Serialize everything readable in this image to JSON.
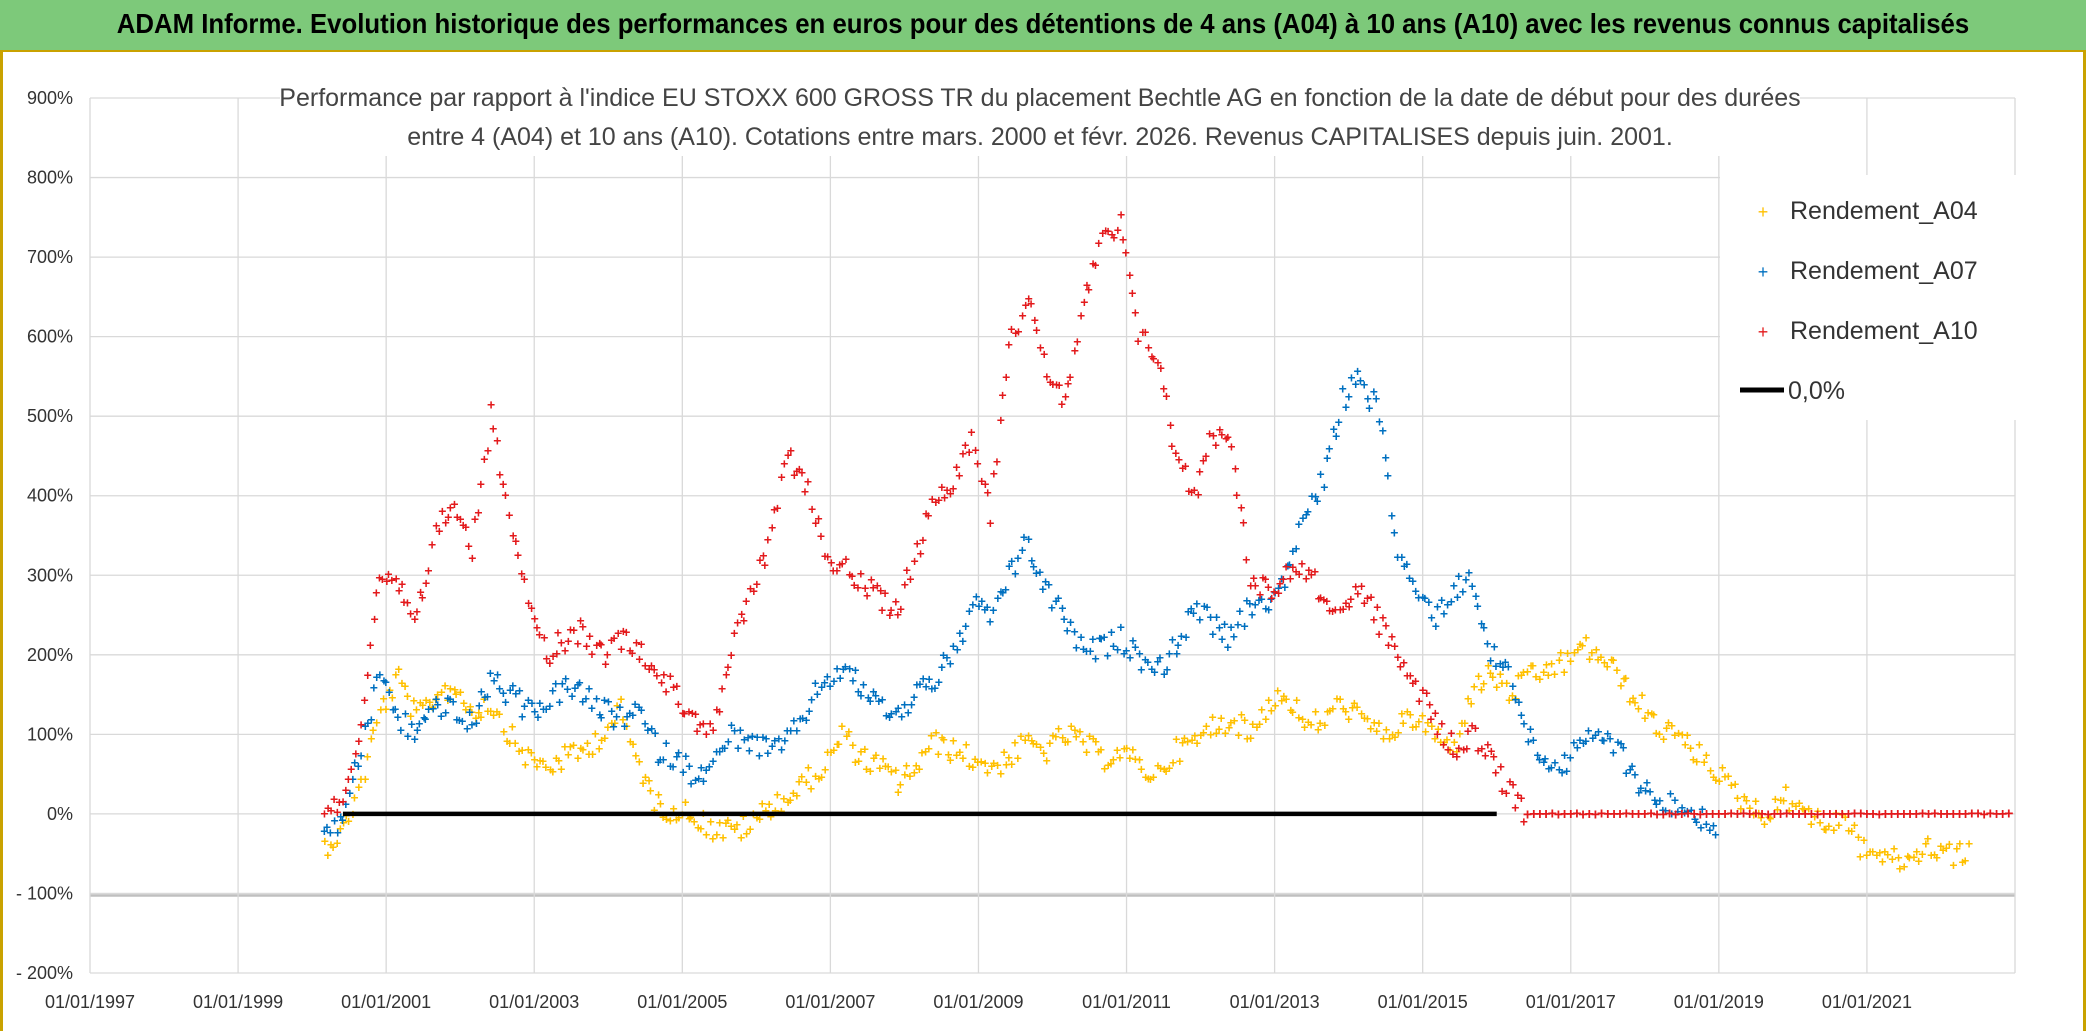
{
  "banner": {
    "text": "ADAM Informe. Evolution historique des performances en euros pour des détentions de 4 ans (A04) à 10 ans (A10) avec les revenus connus capitalisés"
  },
  "chart_data": {
    "type": "scatter",
    "title_lines": [
      "Performance par rapport à l'indice EU STOXX 600 GROSS TR  du placement Bechtle AG en fonction de la date de début pour des durées",
      "entre 4 (A04) et 10 ans (A10). Cotations entre mars. 2000 et févr. 2026. Revenus CAPITALISES depuis juin. 2001."
    ],
    "x_ticks": [
      "01/01/1997",
      "01/01/1999",
      "01/01/2001",
      "01/01/2003",
      "01/01/2005",
      "01/01/2007",
      "01/01/2009",
      "01/01/2011",
      "01/01/2013",
      "01/01/2015",
      "01/01/2017",
      "01/01/2019",
      "01/01/2021"
    ],
    "xlim": [
      "1997-01-01",
      "2023-01-01"
    ],
    "y_ticks": [
      "900%",
      "800%",
      "700%",
      "600%",
      "500%",
      "400%",
      "300%",
      "200%",
      "100%",
      "0%",
      "- 100%",
      "- 200%"
    ],
    "ylim": [
      -200,
      900
    ],
    "grid": true,
    "legend_position": "top-right",
    "colors": {
      "A04": "#ffc000",
      "A07": "#0070c0",
      "A10": "#e31a1c",
      "zero": "#000000"
    },
    "series": [
      {
        "name": "Rendement_A04",
        "x": [
          "2000-03",
          "2000-06",
          "2000-09",
          "2000-12",
          "2001-03",
          "2001-06",
          "2001-09",
          "2001-12",
          "2002-03",
          "2002-06",
          "2002-09",
          "2002-12",
          "2003-03",
          "2003-06",
          "2003-09",
          "2003-12",
          "2004-03",
          "2004-06",
          "2004-09",
          "2004-12",
          "2005-03",
          "2005-06",
          "2005-09",
          "2005-12",
          "2006-03",
          "2006-06",
          "2006-09",
          "2006-12",
          "2007-03",
          "2007-06",
          "2007-09",
          "2007-12",
          "2008-03",
          "2008-06",
          "2008-09",
          "2008-12",
          "2009-03",
          "2009-06",
          "2009-09",
          "2009-12",
          "2010-03",
          "2010-06",
          "2010-09",
          "2010-12",
          "2011-03",
          "2011-06",
          "2011-09",
          "2011-12",
          "2012-03",
          "2012-06",
          "2012-09",
          "2012-12",
          "2013-03",
          "2013-06",
          "2013-09",
          "2013-12",
          "2014-03",
          "2014-06",
          "2014-09",
          "2014-12",
          "2015-03",
          "2015-06",
          "2015-09",
          "2015-12",
          "2016-03",
          "2016-06",
          "2016-09",
          "2016-12",
          "2017-03",
          "2017-06",
          "2017-09",
          "2017-12",
          "2018-03",
          "2018-06",
          "2018-09",
          "2018-12",
          "2019-03",
          "2019-06",
          "2019-09",
          "2019-12",
          "2020-03",
          "2020-06",
          "2020-09",
          "2020-12",
          "2021-03",
          "2021-06",
          "2021-09",
          "2021-12",
          "2022-03",
          "2022-06"
        ],
        "values": [
          -40,
          -20,
          40,
          130,
          170,
          120,
          150,
          160,
          130,
          140,
          100,
          70,
          60,
          70,
          80,
          100,
          130,
          60,
          10,
          5,
          0,
          -20,
          -20,
          -15,
          10,
          20,
          40,
          60,
          100,
          70,
          60,
          40,
          60,
          90,
          80,
          70,
          60,
          70,
          90,
          80,
          100,
          90,
          70,
          80,
          60,
          50,
          80,
          90,
          110,
          120,
          100,
          140,
          150,
          110,
          120,
          140,
          120,
          100,
          110,
          120,
          100,
          80,
          150,
          180,
          150,
          170,
          180,
          190,
          210,
          200,
          170,
          140,
          110,
          100,
          80,
          60,
          30,
          10,
          0,
          20,
          10,
          -20,
          0,
          -40,
          -50,
          -60,
          -50,
          -40,
          -50,
          -50
        ]
      },
      {
        "name": "Rendement_A07",
        "x": [
          "2000-03",
          "2000-06",
          "2000-09",
          "2000-12",
          "2001-03",
          "2001-06",
          "2001-09",
          "2001-12",
          "2002-03",
          "2002-06",
          "2002-09",
          "2002-12",
          "2003-03",
          "2003-06",
          "2003-09",
          "2003-12",
          "2004-03",
          "2004-06",
          "2004-09",
          "2004-12",
          "2005-03",
          "2005-06",
          "2005-09",
          "2005-12",
          "2006-03",
          "2006-06",
          "2006-09",
          "2006-12",
          "2007-03",
          "2007-06",
          "2007-09",
          "2007-12",
          "2008-03",
          "2008-06",
          "2008-09",
          "2008-12",
          "2009-03",
          "2009-06",
          "2009-09",
          "2009-12",
          "2010-03",
          "2010-06",
          "2010-09",
          "2010-12",
          "2011-03",
          "2011-06",
          "2011-09",
          "2011-12",
          "2012-03",
          "2012-06",
          "2012-09",
          "2012-12",
          "2013-03",
          "2013-06",
          "2013-09",
          "2013-12",
          "2014-03",
          "2014-06",
          "2014-09",
          "2014-12",
          "2015-03",
          "2015-06",
          "2015-09",
          "2015-12",
          "2016-03",
          "2016-06",
          "2016-09",
          "2016-12",
          "2017-03",
          "2017-06",
          "2017-09",
          "2017-12",
          "2018-03",
          "2018-06",
          "2018-09",
          "2018-12",
          "2019-01"
        ],
        "values": [
          -30,
          0,
          80,
          180,
          120,
          100,
          140,
          130,
          110,
          170,
          150,
          130,
          140,
          160,
          150,
          130,
          120,
          130,
          80,
          70,
          50,
          60,
          100,
          90,
          80,
          90,
          130,
          170,
          180,
          160,
          140,
          120,
          160,
          170,
          200,
          260,
          250,
          300,
          340,
          280,
          250,
          200,
          210,
          220,
          200,
          180,
          210,
          260,
          240,
          220,
          260,
          270,
          300,
          380,
          420,
          520,
          550,
          500,
          330,
          280,
          250,
          280,
          300,
          200,
          180,
          100,
          70,
          60,
          90,
          100,
          80,
          40,
          20,
          10,
          0,
          -10,
          -30
        ]
      },
      {
        "name": "Rendement_A10",
        "x": [
          "2000-03",
          "2000-06",
          "2000-09",
          "2000-12",
          "2001-03",
          "2001-06",
          "2001-09",
          "2001-12",
          "2002-03",
          "2002-06",
          "2002-09",
          "2002-12",
          "2003-03",
          "2003-06",
          "2003-09",
          "2003-12",
          "2004-03",
          "2004-06",
          "2004-09",
          "2004-12",
          "2005-03",
          "2005-06",
          "2005-09",
          "2005-12",
          "2006-03",
          "2006-06",
          "2006-09",
          "2006-12",
          "2007-03",
          "2007-06",
          "2007-09",
          "2007-12",
          "2008-03",
          "2008-06",
          "2008-09",
          "2008-12",
          "2009-03",
          "2009-06",
          "2009-09",
          "2009-12",
          "2010-03",
          "2010-06",
          "2010-09",
          "2010-12",
          "2011-03",
          "2011-06",
          "2011-09",
          "2011-12",
          "2012-03",
          "2012-06",
          "2012-09",
          "2012-12",
          "2013-03",
          "2013-06",
          "2013-09",
          "2013-12",
          "2014-03",
          "2014-06",
          "2014-09",
          "2014-12",
          "2015-03",
          "2015-06",
          "2015-09",
          "2015-12",
          "2016-01",
          "2016-06",
          "2017-01",
          "2018-01",
          "2019-01",
          "2020-01",
          "2021-01",
          "2022-01",
          "2023-01"
        ],
        "values": [
          0,
          20,
          100,
          300,
          280,
          250,
          350,
          400,
          330,
          500,
          380,
          280,
          200,
          220,
          230,
          200,
          220,
          210,
          180,
          150,
          120,
          110,
          200,
          280,
          330,
          450,
          420,
          330,
          310,
          290,
          270,
          260,
          330,
          400,
          420,
          480,
          380,
          600,
          640,
          560,
          520,
          640,
          720,
          740,
          600,
          580,
          450,
          400,
          480,
          470,
          300,
          280,
          300,
          310,
          270,
          260,
          280,
          240,
          200,
          160,
          120,
          80,
          100,
          80,
          50,
          0,
          0,
          0,
          0,
          0,
          0,
          0,
          0
        ]
      },
      {
        "name": "0,0%",
        "x": [
          "2000-06",
          "2016-01"
        ],
        "values": [
          0,
          0
        ]
      }
    ]
  }
}
